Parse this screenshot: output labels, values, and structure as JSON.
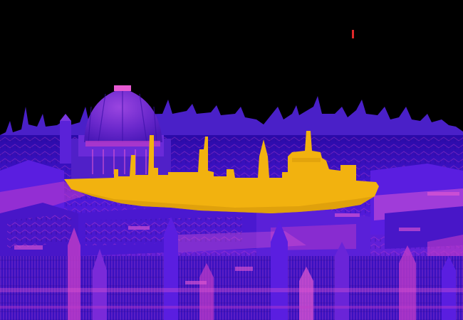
{
  "image": {
    "kind": "false-color aerial cityscape with overlaid tanker ship silhouette",
    "palette": {
      "sky": "#000000",
      "city_deep": "#3a10c8",
      "city_mid": "#5a1ee0",
      "city_magenta": "#c23cc8",
      "city_pink": "#e65ad2",
      "dome": "#7a2fd0",
      "dome_highlight": "#b04fe0",
      "ship": "#f2b20f",
      "ship_shadow": "#d4960a",
      "speck": "#e0282a"
    }
  }
}
